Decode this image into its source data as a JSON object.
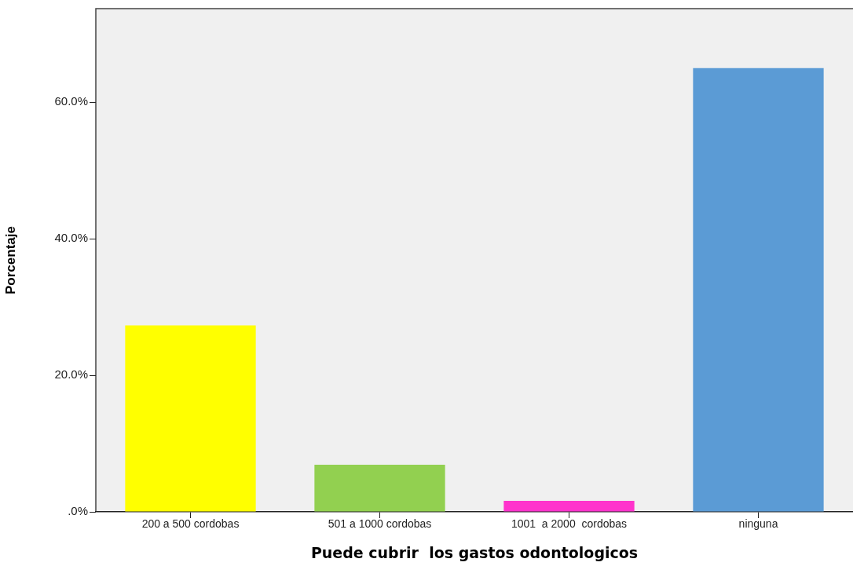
{
  "chart_data": {
    "type": "bar",
    "xlabel": "Puede cubrir  los gastos odontologicos",
    "ylabel": "Porcentaje",
    "categories": [
      "200 a 500 cordobas",
      "501 a 1000 cordobas",
      "1001  a 2000  cordobas",
      "ninguna"
    ],
    "values": [
      27.3,
      6.9,
      1.6,
      65.0
    ],
    "colors": [
      "#ffff00",
      "#92d050",
      "#ff33cc",
      "#5b9bd5"
    ],
    "ylim": [
      0,
      73.7
    ],
    "yticks": [
      {
        "value": 0,
        "label": ".0%"
      },
      {
        "value": 20,
        "label": "20.0%"
      },
      {
        "value": 40,
        "label": "40.0%"
      },
      {
        "value": 60,
        "label": "60.0%"
      }
    ],
    "grid": false,
    "legend": false
  }
}
